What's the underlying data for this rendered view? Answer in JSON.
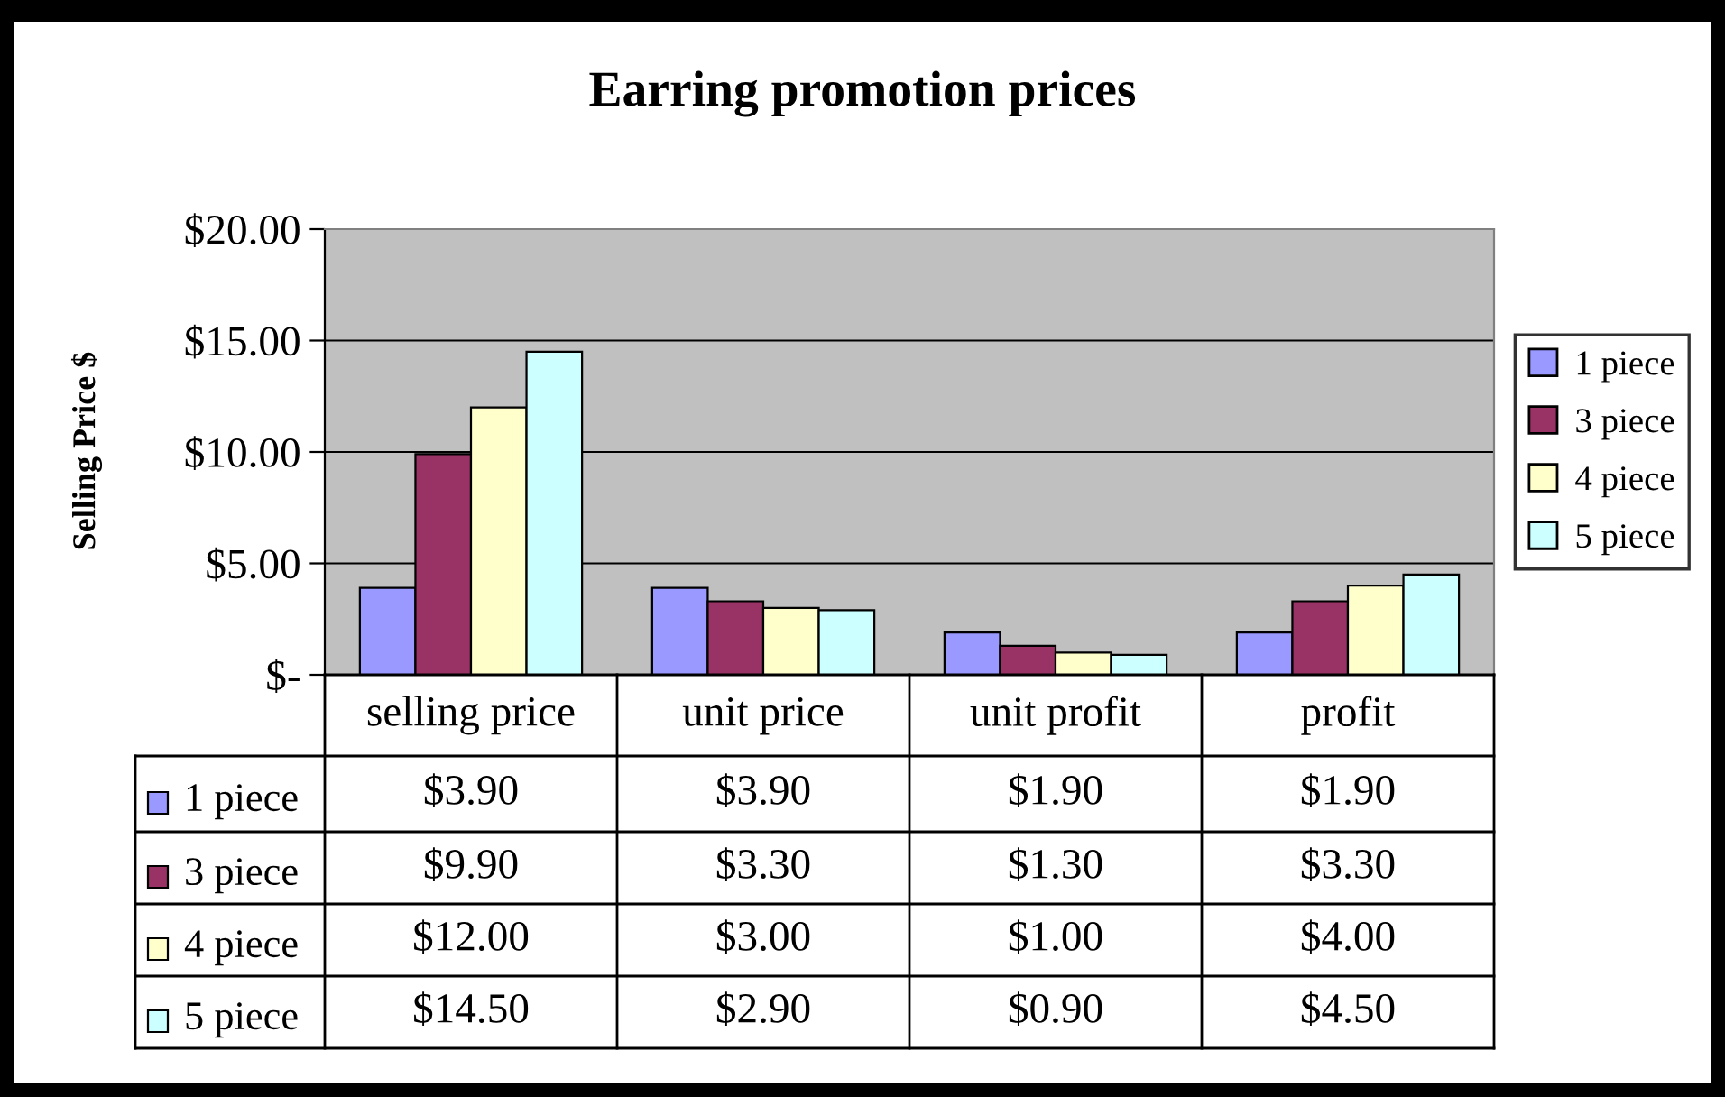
{
  "chart_data": {
    "type": "bar",
    "title": "Earring promotion prices",
    "ylabel": "Selling Price $",
    "categories": [
      "selling price",
      "unit price",
      "unit profit",
      "profit"
    ],
    "series": [
      {
        "name": "1 piece",
        "color": "#9999ff",
        "values": [
          3.9,
          3.9,
          1.9,
          1.9
        ],
        "value_labels": [
          "$3.90",
          "$3.90",
          "$1.90",
          "$1.90"
        ]
      },
      {
        "name": "3 piece",
        "color": "#993366",
        "values": [
          9.9,
          3.3,
          1.3,
          3.3
        ],
        "value_labels": [
          "$9.90",
          "$3.30",
          "$1.30",
          "$3.30"
        ]
      },
      {
        "name": "4 piece",
        "color": "#ffffcc",
        "values": [
          12.0,
          3.0,
          1.0,
          4.0
        ],
        "value_labels": [
          "$12.00",
          "$3.00",
          "$1.00",
          "$4.00"
        ]
      },
      {
        "name": "5 piece",
        "color": "#ccffff",
        "values": [
          14.5,
          2.9,
          0.9,
          4.5
        ],
        "value_labels": [
          "$14.50",
          "$2.90",
          "$0.90",
          "$4.50"
        ]
      }
    ],
    "ylim": [
      0,
      20
    ],
    "yticks": [
      {
        "value": 0,
        "label": "$-"
      },
      {
        "value": 5,
        "label": "$5.00"
      },
      {
        "value": 10,
        "label": "$10.00"
      },
      {
        "value": 15,
        "label": "$15.00"
      },
      {
        "value": 20,
        "label": "$20.00"
      }
    ],
    "grid": "y",
    "legend": "right"
  }
}
